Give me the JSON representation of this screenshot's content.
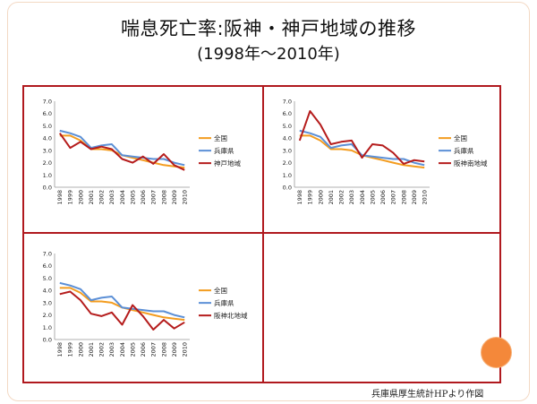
{
  "header": {
    "title": "喘息死亡率:阪神・神戸地域の推移",
    "subtitle": "(1998年～2010年)"
  },
  "footer": {
    "source": "兵庫県厚生統計HPより作図"
  },
  "colors": {
    "national": "#f39c1f",
    "prefecture": "#5b8fd6",
    "region": "#b51c1c",
    "frame": "#b0191e",
    "accent_dot": "#f4883a"
  },
  "chart_data": [
    {
      "type": "line",
      "x": [
        "1998",
        "1999",
        "2000",
        "2001",
        "2002",
        "2003",
        "2004",
        "2005",
        "2006",
        "2007",
        "2008",
        "2009",
        "2010"
      ],
      "ylim": [
        0,
        7
      ],
      "yticks": [
        "0.0",
        "1.0",
        "2.0",
        "3.0",
        "4.0",
        "5.0",
        "6.0",
        "7.0"
      ],
      "series": [
        {
          "name": "全国",
          "values": [
            4.2,
            4.2,
            3.8,
            3.1,
            3.1,
            3.0,
            2.6,
            2.4,
            2.2,
            2.0,
            1.8,
            1.7,
            1.6
          ]
        },
        {
          "name": "兵庫県",
          "values": [
            4.6,
            4.4,
            4.1,
            3.2,
            3.4,
            3.5,
            2.6,
            2.5,
            2.4,
            2.3,
            2.3,
            2.0,
            1.8
          ]
        },
        {
          "name": "神戸地域",
          "values": [
            4.4,
            3.2,
            3.7,
            3.1,
            3.3,
            3.1,
            2.3,
            2.0,
            2.5,
            1.9,
            2.7,
            1.8,
            1.4
          ]
        }
      ]
    },
    {
      "type": "line",
      "x": [
        "1998",
        "1999",
        "2000",
        "2001",
        "2002",
        "2003",
        "2004",
        "2005",
        "2006",
        "2007",
        "2008",
        "2009",
        "2010"
      ],
      "ylim": [
        0,
        7
      ],
      "yticks": [
        "0.0",
        "1.0",
        "2.0",
        "3.0",
        "4.0",
        "5.0",
        "6.0",
        "7.0"
      ],
      "series": [
        {
          "name": "全国",
          "values": [
            4.2,
            4.2,
            3.8,
            3.1,
            3.1,
            3.0,
            2.6,
            2.4,
            2.2,
            2.0,
            1.8,
            1.7,
            1.6
          ]
        },
        {
          "name": "兵庫県",
          "values": [
            4.6,
            4.4,
            4.1,
            3.2,
            3.4,
            3.5,
            2.6,
            2.5,
            2.4,
            2.3,
            2.3,
            2.0,
            1.8
          ]
        },
        {
          "name": "阪神南地域",
          "values": [
            3.8,
            6.2,
            5.1,
            3.5,
            3.7,
            3.8,
            2.4,
            3.5,
            3.4,
            2.8,
            1.9,
            2.2,
            2.1
          ]
        }
      ]
    },
    {
      "type": "line",
      "x": [
        "1998",
        "1999",
        "2000",
        "2001",
        "2002",
        "2003",
        "2004",
        "2005",
        "2006",
        "2007",
        "2008",
        "2009",
        "2010"
      ],
      "ylim": [
        0,
        7
      ],
      "yticks": [
        "0.0",
        "1.0",
        "2.0",
        "3.0",
        "4.0",
        "5.0",
        "6.0",
        "7.0"
      ],
      "series": [
        {
          "name": "全国",
          "values": [
            4.2,
            4.2,
            3.8,
            3.1,
            3.1,
            3.0,
            2.6,
            2.4,
            2.2,
            2.0,
            1.8,
            1.7,
            1.6
          ]
        },
        {
          "name": "兵庫県",
          "values": [
            4.6,
            4.4,
            4.1,
            3.2,
            3.4,
            3.5,
            2.6,
            2.5,
            2.4,
            2.3,
            2.3,
            2.0,
            1.8
          ]
        },
        {
          "name": "阪神北地域",
          "values": [
            3.7,
            3.9,
            3.2,
            2.1,
            1.9,
            2.2,
            1.2,
            2.8,
            1.9,
            0.8,
            1.6,
            0.9,
            1.4
          ]
        }
      ]
    }
  ]
}
